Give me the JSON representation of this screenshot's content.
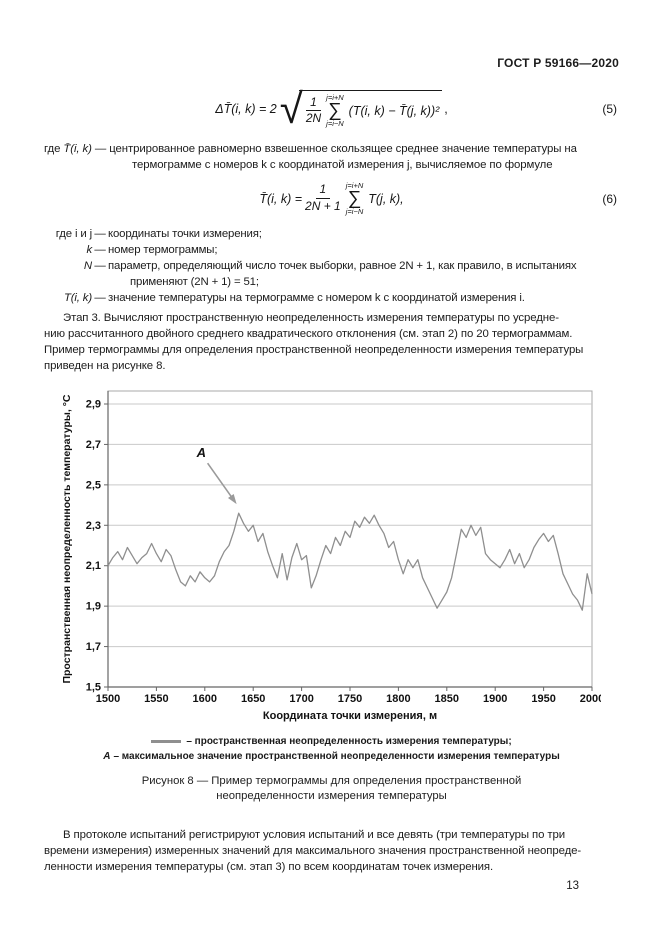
{
  "page": {
    "header": "ГОСТ Р 59166—2020",
    "page_number": "13"
  },
  "formula5": {
    "lhs": "ΔT̄(i, k) = 2",
    "frac_num": "1",
    "frac_den": "2N",
    "sigma": "∑",
    "sum_top": "j=i+N",
    "sum_bottom": "j=i−N",
    "body": "(T(i, k) − T̄(j, k))²",
    "comma": ",",
    "number": "(5)"
  },
  "where1": {
    "label": "где",
    "term": "T̄(i, k)",
    "dash": "—",
    "text": "центрированное равномерно взвешенное скользящее среднее значение температуры на\nтермограмме с номеров k с координатой измерения j, вычисляемое по формуле"
  },
  "formula6": {
    "lhs": "T̄(i, k) =",
    "frac_num": "1",
    "frac_den": "2N + 1",
    "sigma": "∑",
    "sum_top": "j=i+N",
    "sum_bottom": "j=i−N",
    "body": "T(j, k),",
    "number": "(6)"
  },
  "definitions": {
    "rows": [
      {
        "term": "где i и j",
        "dash": "—",
        "desc": "координаты точки измерения;"
      },
      {
        "term": "k",
        "dash": "—",
        "desc": "номер термограммы;"
      },
      {
        "term": "N",
        "dash": "—",
        "desc": "параметр, определяющий число точек выборки, равное 2N + 1, как правило, в испытаниях",
        "desc2": "применяют (2N + 1) = 51;"
      },
      {
        "term": "T(i, k)",
        "dash": "—",
        "desc": "значение температуры на термограмме с номером k с координатой измерения i."
      }
    ]
  },
  "paragraph_stage3": "Этап 3.  Вычисляют пространственную неопределенность измерения температуры по усредне-\nнию рассчитанного двойного среднего квадратического отклонения (см. этап 2) по 20 термограммам.\nПример термограммы для определения пространственной неопределенности измерения температуры\nприведен на рисунке 8.",
  "chart_data": {
    "type": "line",
    "title": "",
    "xlabel": "Координата точки измерения, м",
    "ylabel": "Пространственная неопределенность температуры, °С",
    "xlim": [
      1500,
      2000
    ],
    "ylim": [
      1.5,
      2.9
    ],
    "x_ticks": [
      "1500",
      "1550",
      "1600",
      "1650",
      "1700",
      "1750",
      "1800",
      "1850",
      "1900",
      "1950",
      "2000"
    ],
    "y_ticks": [
      "1,5",
      "1,7",
      "1,9",
      "2,1",
      "2,3",
      "2,5",
      "2,7",
      "2,9"
    ],
    "grid": "horizontal",
    "legend_position": "below",
    "line_color": "#8f8f8f",
    "grid_color": "#c9c9c9",
    "frame_color": "#a8a8a8",
    "axis_color": "#666666",
    "annotation": {
      "label": "A",
      "x": 1637,
      "y": 2.36
    },
    "series": [
      {
        "name": "пространственная неопределенность измерения температуры",
        "points": [
          [
            1500,
            2.1
          ],
          [
            1505,
            2.14
          ],
          [
            1510,
            2.17
          ],
          [
            1515,
            2.13
          ],
          [
            1520,
            2.19
          ],
          [
            1525,
            2.15
          ],
          [
            1530,
            2.11
          ],
          [
            1535,
            2.14
          ],
          [
            1540,
            2.16
          ],
          [
            1545,
            2.21
          ],
          [
            1550,
            2.16
          ],
          [
            1555,
            2.12
          ],
          [
            1560,
            2.18
          ],
          [
            1565,
            2.15
          ],
          [
            1570,
            2.08
          ],
          [
            1575,
            2.02
          ],
          [
            1580,
            2.0
          ],
          [
            1585,
            2.05
          ],
          [
            1590,
            2.02
          ],
          [
            1595,
            2.07
          ],
          [
            1600,
            2.04
          ],
          [
            1605,
            2.02
          ],
          [
            1610,
            2.05
          ],
          [
            1615,
            2.12
          ],
          [
            1620,
            2.17
          ],
          [
            1625,
            2.2
          ],
          [
            1630,
            2.27
          ],
          [
            1635,
            2.36
          ],
          [
            1640,
            2.31
          ],
          [
            1645,
            2.27
          ],
          [
            1650,
            2.3
          ],
          [
            1655,
            2.22
          ],
          [
            1660,
            2.26
          ],
          [
            1665,
            2.17
          ],
          [
            1670,
            2.1
          ],
          [
            1675,
            2.04
          ],
          [
            1680,
            2.16
          ],
          [
            1685,
            2.03
          ],
          [
            1690,
            2.14
          ],
          [
            1695,
            2.21
          ],
          [
            1700,
            2.13
          ],
          [
            1705,
            2.15
          ],
          [
            1710,
            1.99
          ],
          [
            1715,
            2.05
          ],
          [
            1720,
            2.13
          ],
          [
            1725,
            2.2
          ],
          [
            1730,
            2.16
          ],
          [
            1735,
            2.24
          ],
          [
            1740,
            2.2
          ],
          [
            1745,
            2.27
          ],
          [
            1750,
            2.24
          ],
          [
            1755,
            2.32
          ],
          [
            1760,
            2.29
          ],
          [
            1765,
            2.34
          ],
          [
            1770,
            2.31
          ],
          [
            1775,
            2.35
          ],
          [
            1780,
            2.3
          ],
          [
            1785,
            2.26
          ],
          [
            1790,
            2.19
          ],
          [
            1795,
            2.22
          ],
          [
            1800,
            2.13
          ],
          [
            1805,
            2.06
          ],
          [
            1810,
            2.13
          ],
          [
            1815,
            2.09
          ],
          [
            1820,
            2.13
          ],
          [
            1825,
            2.04
          ],
          [
            1830,
            1.99
          ],
          [
            1835,
            1.94
          ],
          [
            1840,
            1.89
          ],
          [
            1845,
            1.93
          ],
          [
            1850,
            1.97
          ],
          [
            1855,
            2.04
          ],
          [
            1860,
            2.16
          ],
          [
            1865,
            2.28
          ],
          [
            1870,
            2.24
          ],
          [
            1875,
            2.3
          ],
          [
            1880,
            2.25
          ],
          [
            1885,
            2.29
          ],
          [
            1890,
            2.16
          ],
          [
            1895,
            2.13
          ],
          [
            1900,
            2.11
          ],
          [
            1905,
            2.09
          ],
          [
            1910,
            2.13
          ],
          [
            1915,
            2.18
          ],
          [
            1920,
            2.11
          ],
          [
            1925,
            2.16
          ],
          [
            1930,
            2.09
          ],
          [
            1935,
            2.13
          ],
          [
            1940,
            2.19
          ],
          [
            1945,
            2.23
          ],
          [
            1950,
            2.26
          ],
          [
            1955,
            2.22
          ],
          [
            1960,
            2.25
          ],
          [
            1965,
            2.16
          ],
          [
            1970,
            2.06
          ],
          [
            1975,
            2.01
          ],
          [
            1980,
            1.96
          ],
          [
            1985,
            1.93
          ],
          [
            1990,
            1.88
          ],
          [
            1995,
            2.06
          ],
          [
            2000,
            1.96
          ]
        ]
      }
    ]
  },
  "legend": {
    "line1": "– пространственная неопределенность измерения температуры;",
    "line2_term": "А",
    "line2": "– максимальное значение пространственной неопределенности измерения температуры"
  },
  "caption": "Рисунок 8 — Пример термограммы для определения пространственной\nнеопределенности измерения температуры",
  "paragraph_final": "В протоколе испытаний регистрируют условия испытаний и все девять (три температуры по три\nвремени измерения) измеренных значений для максимального значения пространственной неопреде-\nленности измерения температуры (см. этап 3) по всем координатам точек измерения."
}
